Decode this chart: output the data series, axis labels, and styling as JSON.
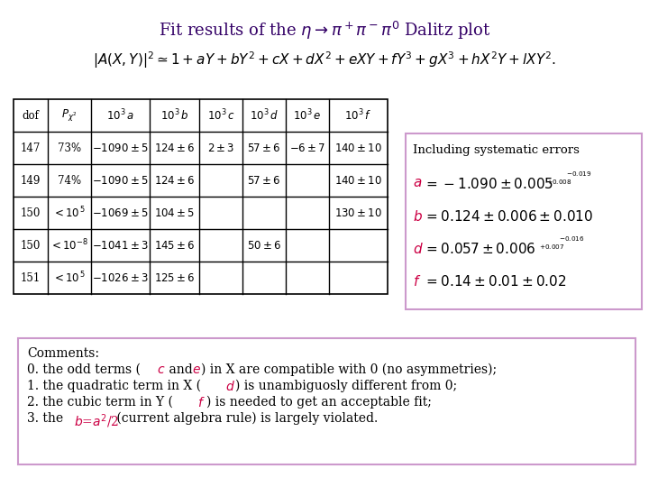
{
  "title": "Fit results of the $\\eta \\rightarrow \\pi^+\\pi^-\\pi^0$ Dalitz plot",
  "formula": "$|A(X,Y)|^2 \\simeq 1 + aY + bY^2 + cX + dX^2 + eXY + fY^3 + gX^3 + hX^2Y + lXY^2.$",
  "table_headers": [
    "dof",
    "$P_{\\chi^2}$",
    "$10^3\\,a$",
    "$10^3\\,b$",
    "$10^3\\,c$",
    "$10^3\\,d$",
    "$10^3\\,e$",
    "$10^3\\,f$"
  ],
  "table_rows": [
    [
      "147",
      "73%",
      "$-1090\\pm5$",
      "$124\\pm6$",
      "$2\\pm3$",
      "$57\\pm6$",
      "$-6\\pm7$",
      "$140\\pm10$"
    ],
    [
      "149",
      "74%",
      "$-1090\\pm5$",
      "$124\\pm6$",
      "",
      "$57\\pm6$",
      "",
      "$140\\pm10$"
    ],
    [
      "150",
      "$<10^{\\,5}$",
      "$-1069\\pm5$",
      "$104\\pm5$",
      "",
      "",
      "",
      "$130\\pm10$"
    ],
    [
      "150",
      "$<10^{-8}$",
      "$-1041\\pm3$",
      "$145\\pm6$",
      "",
      "$50\\pm6$",
      "",
      ""
    ],
    [
      "151",
      "$<10^{\\,5}$",
      "$-1026\\pm3$",
      "$125\\pm6$",
      "",
      "",
      "",
      ""
    ]
  ],
  "syst_title": "Including systematic errors",
  "syst_a": "$\\mathit{a}$=-1.090 $\\pm$ 0.005",
  "syst_a_sup": "+0.008",
  "syst_a_sub": "-0.019",
  "syst_b": "$\\mathit{b}$= 0.124 $\\pm$ 0.006 $\\pm$ 0.010",
  "syst_d": "$\\mathit{d}$= 0.057 $\\pm$ 0.006",
  "syst_d_sup": "+0.007",
  "syst_d_sub": "-0.016",
  "syst_f": "$\\mathit{f}$=  0.14 $\\pm$ 0.01 $\\pm$ 0.02",
  "comments_title": "Comments:",
  "comment0": "0. the odd terms ($c$ and $e$) in X are compatible with 0 (no asymmetries);",
  "comment1": "1. the quadratic term in X ($d$) is unambiguosly different from 0;",
  "comment2": "2. the cubic term in Y ($f$) is needed to get an acceptable fit;",
  "comment3": "3. the $\\mathit{b}$=$\\mathit{a}^2$/2 (current algebra rule) is largely violated.",
  "bg_color": "#ffffff",
  "table_border_color": "#000000",
  "syst_box_border": "#cc99cc",
  "comment_box_border": "#cc99cc",
  "red_color": "#cc0044",
  "title_color": "#330066",
  "text_color": "#000000"
}
